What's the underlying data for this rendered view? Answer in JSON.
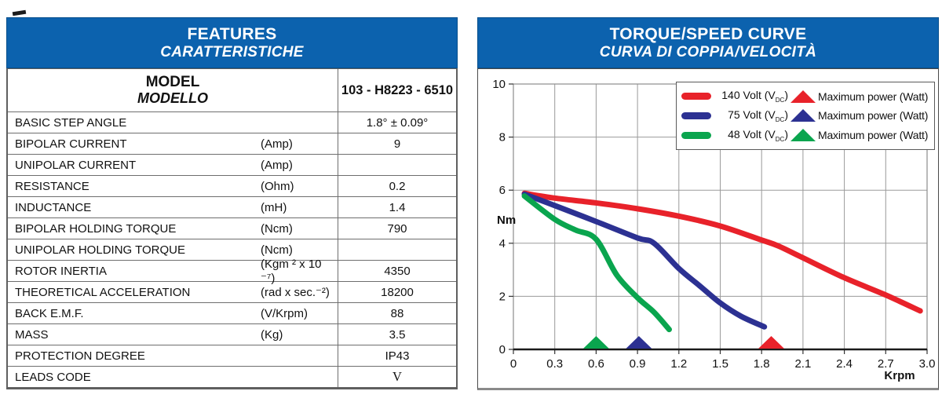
{
  "colors": {
    "header_blue": "#0c62ae",
    "grid": "#9a9a9a",
    "axis": "#1a1a1a",
    "red_series": "#e8222a",
    "blue_series": "#2c3192",
    "green_series": "#0aa54e"
  },
  "features_panel": {
    "title": "FEATURES",
    "subtitle": "CARATTERISTICHE",
    "model": {
      "label_en": "MODEL",
      "label_it": "MODELLO",
      "value": "103 - H8223 - 6510"
    },
    "rows": [
      {
        "label": "BASIC STEP ANGLE",
        "unit": "",
        "value": "1.8° ± 0.09°"
      },
      {
        "label": "BIPOLAR CURRENT",
        "unit": "(Amp)",
        "value": "9"
      },
      {
        "label": "UNIPOLAR CURRENT",
        "unit": "(Amp)",
        "value": ""
      },
      {
        "label": "RESISTANCE",
        "unit": "(Ohm)",
        "value": "0.2"
      },
      {
        "label": "INDUCTANCE",
        "unit": "(mH)",
        "value": "1.4"
      },
      {
        "label": "BIPOLAR HOLDING TORQUE",
        "unit": "(Ncm)",
        "value": "790"
      },
      {
        "label": "UNIPOLAR HOLDING TORQUE",
        "unit": "(Ncm)",
        "value": ""
      },
      {
        "label": "ROTOR INERTIA",
        "unit": "(Kgm ² x 10 ⁻⁷)",
        "value": "4350"
      },
      {
        "label": "THEORETICAL ACCELERATION",
        "unit": "(rad x sec.⁻²)",
        "value": "18200"
      },
      {
        "label": "BACK E.M.F.",
        "unit": "(V/Krpm)",
        "value": "88"
      },
      {
        "label": "MASS",
        "unit": "(Kg)",
        "value": "3.5"
      },
      {
        "label": "PROTECTION DEGREE",
        "unit": "",
        "value": "IP43"
      },
      {
        "label": "LEADS CODE",
        "unit": "",
        "value": "V",
        "serif": true
      }
    ]
  },
  "torque_panel": {
    "title": "TORQUE/SPEED CURVE",
    "subtitle": "CURVA DI COPPIA/VELOCITÀ"
  },
  "chart_data": {
    "type": "line",
    "title": "TORQUE/SPEED CURVE",
    "subtitle": "CURVA DI COPPIA/VELOCITÀ",
    "xlabel": "Krpm",
    "ylabel": "Nm",
    "xlim": [
      0,
      3.0
    ],
    "ylim": [
      0,
      10
    ],
    "xticks": [
      0,
      0.3,
      0.6,
      0.9,
      1.2,
      1.5,
      1.8,
      2.1,
      2.4,
      2.7,
      3.0
    ],
    "xtick_labels": [
      "0",
      "0.3",
      "0.6",
      "0.9",
      "1.2",
      "1.5",
      "1.8",
      "2.1",
      "2.4",
      "2.7",
      "3.0"
    ],
    "yticks": [
      0,
      2,
      4,
      6,
      8,
      10
    ],
    "ytick_labels": [
      "0",
      "2",
      "4",
      "6",
      "8",
      "10"
    ],
    "grid": true,
    "legend_position": "top-right",
    "series": [
      {
        "name": "140 Volt (VDC)",
        "volt_num": "140",
        "volt_mid": " Volt (V",
        "volt_sub": "DC",
        "volt_end": ")",
        "color": "#e8222a",
        "max_power_label": "Maximum power (Watt)",
        "max_power_x": 1.87,
        "points": [
          [
            0.08,
            5.88
          ],
          [
            0.3,
            5.7
          ],
          [
            0.6,
            5.52
          ],
          [
            0.9,
            5.3
          ],
          [
            1.2,
            5.02
          ],
          [
            1.5,
            4.65
          ],
          [
            1.8,
            4.12
          ],
          [
            1.92,
            3.9
          ],
          [
            2.1,
            3.45
          ],
          [
            2.4,
            2.7
          ],
          [
            2.7,
            2.05
          ],
          [
            2.95,
            1.45
          ]
        ]
      },
      {
        "name": "75 Volt (VDC)",
        "volt_num": "75",
        "volt_mid": " Volt (V",
        "volt_sub": "DC",
        "volt_end": ")",
        "color": "#2c3192",
        "max_power_label": "Maximum power (Watt)",
        "max_power_x": 0.91,
        "points": [
          [
            0.08,
            5.85
          ],
          [
            0.3,
            5.42
          ],
          [
            0.6,
            4.82
          ],
          [
            0.9,
            4.2
          ],
          [
            1.02,
            4.0
          ],
          [
            1.2,
            3.05
          ],
          [
            1.35,
            2.4
          ],
          [
            1.5,
            1.75
          ],
          [
            1.65,
            1.25
          ],
          [
            1.82,
            0.85
          ]
        ]
      },
      {
        "name": "48 Volt (VDC)",
        "volt_num": "48",
        "volt_mid": " Volt (V",
        "volt_sub": "DC",
        "volt_end": ")",
        "color": "#0aa54e",
        "max_power_label": "Maximum power (Watt)",
        "max_power_x": 0.6,
        "points": [
          [
            0.08,
            5.78
          ],
          [
            0.3,
            4.9
          ],
          [
            0.45,
            4.5
          ],
          [
            0.6,
            4.15
          ],
          [
            0.75,
            2.8
          ],
          [
            0.9,
            1.95
          ],
          [
            1.02,
            1.4
          ],
          [
            1.13,
            0.75
          ]
        ]
      }
    ]
  }
}
